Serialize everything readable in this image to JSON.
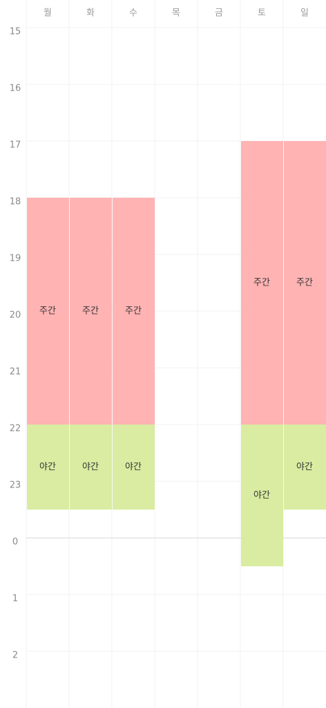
{
  "days": [
    "월",
    "화",
    "수",
    "목",
    "금",
    "토",
    "일"
  ],
  "hours": [
    "15",
    "16",
    "17",
    "18",
    "19",
    "20",
    "21",
    "22",
    "23",
    "0",
    "1",
    "2"
  ],
  "shift_types": [
    {
      "label": "주간",
      "color": "#ffb3b3"
    },
    {
      "label": "야간",
      "color": "#d9eca1"
    }
  ],
  "shifts": [
    {
      "day": 0,
      "type": 0,
      "start": 18,
      "end": 22
    },
    {
      "day": 1,
      "type": 0,
      "start": 18,
      "end": 22
    },
    {
      "day": 2,
      "type": 0,
      "start": 18,
      "end": 22
    },
    {
      "day": 5,
      "type": 0,
      "start": 17,
      "end": 22
    },
    {
      "day": 6,
      "type": 0,
      "start": 17,
      "end": 22
    },
    {
      "day": 0,
      "type": 1,
      "start": 22,
      "end": 23.5
    },
    {
      "day": 1,
      "type": 1,
      "start": 22,
      "end": 23.5
    },
    {
      "day": 2,
      "type": 1,
      "start": 22,
      "end": 23.5
    },
    {
      "day": 5,
      "type": 1,
      "start": 22,
      "end": 24.5
    },
    {
      "day": 6,
      "type": 1,
      "start": 22,
      "end": 23.5
    }
  ]
}
